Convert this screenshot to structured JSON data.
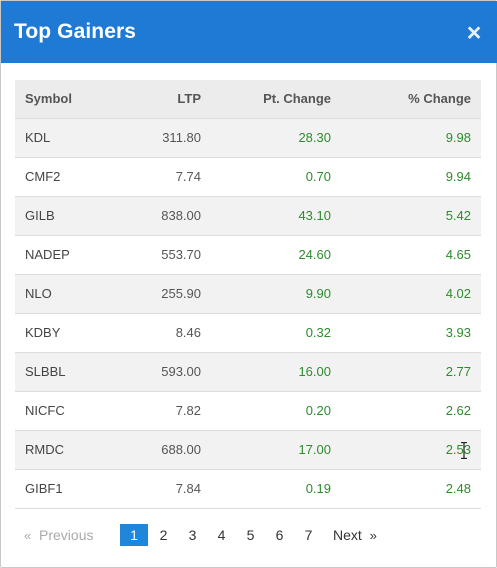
{
  "header": {
    "title": "Top Gainers",
    "close_label": "×"
  },
  "table": {
    "columns": [
      "Symbol",
      "LTP",
      "Pt. Change",
      "% Change"
    ],
    "rows": [
      {
        "symbol": "KDL",
        "ltp": "311.80",
        "pt_change": "28.30",
        "pct_change": "9.98"
      },
      {
        "symbol": "CMF2",
        "ltp": "7.74",
        "pt_change": "0.70",
        "pct_change": "9.94"
      },
      {
        "symbol": "GILB",
        "ltp": "838.00",
        "pt_change": "43.10",
        "pct_change": "5.42"
      },
      {
        "symbol": "NADEP",
        "ltp": "553.70",
        "pt_change": "24.60",
        "pct_change": "4.65"
      },
      {
        "symbol": "NLO",
        "ltp": "255.90",
        "pt_change": "9.90",
        "pct_change": "4.02"
      },
      {
        "symbol": "KDBY",
        "ltp": "8.46",
        "pt_change": "0.32",
        "pct_change": "3.93"
      },
      {
        "symbol": "SLBBL",
        "ltp": "593.00",
        "pt_change": "16.00",
        "pct_change": "2.77"
      },
      {
        "symbol": "NICFC",
        "ltp": "7.82",
        "pt_change": "0.20",
        "pct_change": "2.62"
      },
      {
        "symbol": "RMDC",
        "ltp": "688.00",
        "pt_change": "17.00",
        "pct_change": "2.53"
      },
      {
        "symbol": "GIBF1",
        "ltp": "7.84",
        "pt_change": "0.19",
        "pct_change": "2.48"
      }
    ]
  },
  "pagination": {
    "prev_arrow": "«",
    "prev_label": "Previous",
    "pages": [
      "1",
      "2",
      "3",
      "4",
      "5",
      "6",
      "7"
    ],
    "current_page": "1",
    "next_label": "Next",
    "next_arrow": "»"
  },
  "colors": {
    "header_bg": "#1f7ad6",
    "positive": "#2e8b2e",
    "active_page": "#1f86d9"
  }
}
